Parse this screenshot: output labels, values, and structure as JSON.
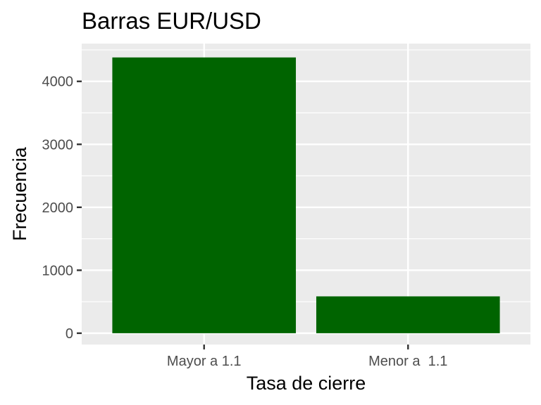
{
  "chart_data": {
    "type": "bar",
    "title": "Barras EUR/USD",
    "xlabel": "Tasa de cierre",
    "ylabel": "Frecuencia",
    "categories": [
      "Mayor a 1.1",
      "Menor a  1.1"
    ],
    "values": [
      4380,
      585
    ],
    "ylim": [
      -180,
      4600
    ],
    "yticks": [
      0,
      1000,
      2000,
      3000,
      4000
    ],
    "grid": true,
    "colors": {
      "bar": "#006400",
      "panel": "#ebebeb",
      "grid": "#ffffff",
      "text": "#4d4d4d",
      "title": "#000000"
    }
  }
}
